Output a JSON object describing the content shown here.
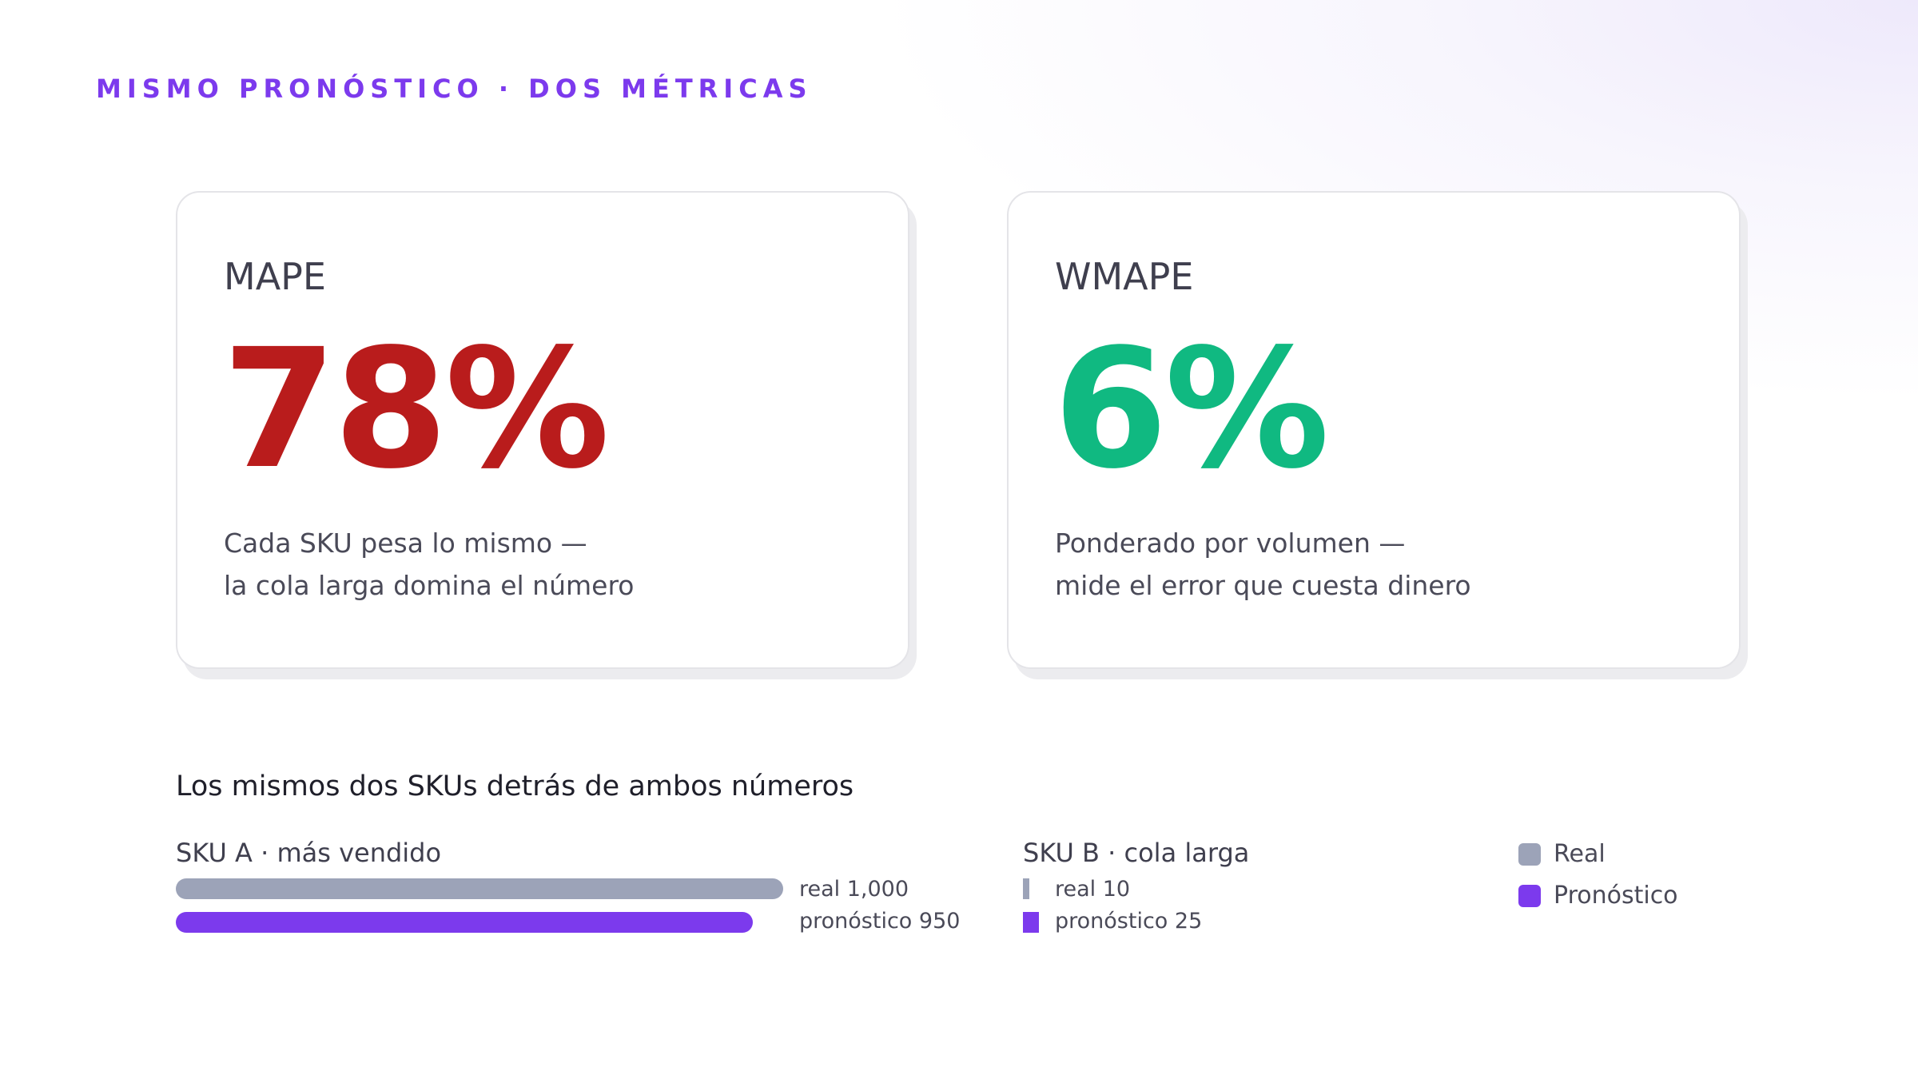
{
  "header": {
    "eyebrow": "MISMO PRONÓSTICO · DOS MÉTRICAS"
  },
  "cards": [
    {
      "label": "MAPE",
      "value": "78%",
      "value_color": "#b91c1c",
      "description": [
        "Cada SKU pesa lo mismo —",
        "la cola larga domina el número"
      ]
    },
    {
      "label": "WMAPE",
      "value": "6%",
      "value_color": "#10b981",
      "description": [
        "Ponderado por volumen —",
        "mide el error que cuesta dinero"
      ]
    }
  ],
  "comparison": {
    "title": "Los mismos dos SKUs detrás de ambos números",
    "sku_a": {
      "title": "SKU A · más vendido",
      "real": 1000,
      "forecast": 950,
      "real_label": "real 1,000",
      "forecast_label": "pronóstico 950"
    },
    "sku_b": {
      "title": "SKU B · cola larga",
      "real": 10,
      "forecast": 25,
      "real_label": "real 10",
      "forecast_label": "pronóstico 25"
    }
  },
  "legend": [
    {
      "label": "Real",
      "color": "#9ca3b8"
    },
    {
      "label": "Pronóstico",
      "color": "#7c3aed"
    }
  ],
  "colors": {
    "accent": "#7c3aed",
    "real": "#9ca3b8",
    "forecast": "#7c3aed",
    "bad": "#b91c1c",
    "good": "#10b981"
  }
}
